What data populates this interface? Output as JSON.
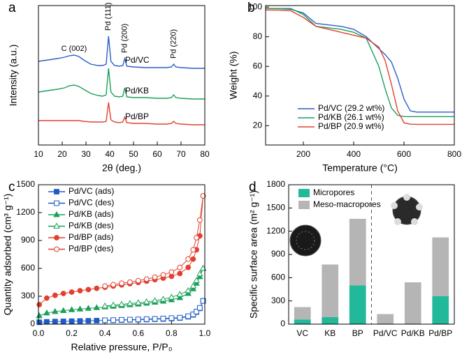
{
  "chart_data": [
    {
      "type": "line",
      "panel": "a",
      "xlabel": "2θ (deg.)",
      "ylabel": "Intensity (a.u.)",
      "x": [
        10,
        14,
        18,
        21,
        23,
        25,
        27,
        29,
        32,
        35,
        37,
        38.5,
        39.5,
        40.5,
        42,
        44,
        45.5,
        46.3,
        47.2,
        50,
        55,
        60,
        64,
        66,
        66.9,
        67.8,
        70,
        75,
        80
      ],
      "xlim": [
        10,
        80
      ],
      "xticks": [
        10,
        20,
        30,
        40,
        50,
        60,
        70,
        80
      ],
      "ylim": [
        0,
        100
      ],
      "legend": "inline",
      "annotations": [
        {
          "text": "C (002)",
          "x": 25,
          "vertical": false
        },
        {
          "text": "Pd (111)",
          "x": 39.5,
          "vertical": true
        },
        {
          "text": "Pd (200)",
          "x": 46.3,
          "vertical": true
        },
        {
          "text": "Pd (220)",
          "x": 66.9,
          "vertical": true
        }
      ],
      "series": [
        {
          "name": "Pd/VC",
          "color": "#2a5fc4",
          "values": [
            60,
            61,
            62,
            63,
            64,
            64.5,
            63.5,
            61,
            58,
            57,
            57,
            58,
            78,
            60,
            57,
            56.5,
            57,
            62,
            56.5,
            56,
            55.5,
            55.5,
            55.5,
            56,
            58,
            56,
            55.5,
            55,
            55
          ]
        },
        {
          "name": "Pd/KB",
          "color": "#1aa05a",
          "values": [
            38,
            39,
            40,
            41,
            42.5,
            43,
            42,
            40,
            37,
            35.5,
            35,
            36,
            55,
            38,
            35,
            34.5,
            35,
            41,
            34.5,
            34,
            34,
            33.5,
            33.5,
            34,
            36,
            34,
            33.5,
            33,
            33
          ]
        },
        {
          "name": "Pd/BP",
          "color": "#e2402f",
          "values": [
            17.5,
            17.5,
            17.5,
            17.5,
            17.5,
            17.5,
            17.5,
            17,
            16.5,
            16.5,
            16.5,
            17,
            30.5,
            18,
            16.5,
            16,
            16.5,
            20,
            16,
            15.5,
            15.5,
            15,
            15,
            15.5,
            17,
            15.5,
            15,
            14.5,
            14.5
          ]
        }
      ]
    },
    {
      "type": "line",
      "panel": "b",
      "xlabel": "Temperature (°C)",
      "ylabel": "Weight (%)",
      "x": [
        50,
        100,
        150,
        200,
        250,
        300,
        350,
        400,
        450,
        500,
        525,
        550,
        575,
        600,
        625,
        650,
        700,
        750,
        800
      ],
      "xlim": [
        50,
        800
      ],
      "xticks": [
        200,
        400,
        600,
        800
      ],
      "ylim": [
        7,
        101
      ],
      "yticks": [
        20,
        40,
        60,
        80,
        100
      ],
      "legend": "lower center",
      "series": [
        {
          "name": "Pd/VC (29.2 wt%)",
          "color": "#2a5fc4",
          "values": [
            99,
            99,
            98.5,
            96,
            89,
            88,
            87,
            85,
            80,
            72,
            68,
            63,
            52,
            38,
            30,
            29.2,
            29.2,
            29.2,
            29.2
          ]
        },
        {
          "name": "Pd/KB (26.1 wt%)",
          "color": "#1aa05a",
          "values": [
            99,
            99,
            99,
            95,
            87,
            86,
            85,
            83,
            79,
            60,
            45,
            32,
            27,
            26.2,
            26.1,
            26.1,
            26.1,
            26.1,
            26.1
          ]
        },
        {
          "name": "Pd/BP (20.9 wt%)",
          "color": "#e2402f",
          "values": [
            98,
            98,
            97.5,
            93,
            87,
            85,
            83,
            81,
            79,
            73,
            64,
            48,
            30,
            22,
            21,
            20.9,
            20.9,
            20.9,
            20.9
          ]
        }
      ]
    },
    {
      "type": "line",
      "panel": "c",
      "xlabel": "Relative pressure, P/P₀",
      "ylabel": "Quantity adsorbed (cm³ g⁻¹)",
      "x": [
        0.005,
        0.05,
        0.1,
        0.15,
        0.2,
        0.25,
        0.3,
        0.35,
        0.4,
        0.45,
        0.5,
        0.55,
        0.6,
        0.65,
        0.7,
        0.75,
        0.8,
        0.85,
        0.9,
        0.93,
        0.95,
        0.97,
        0.99
      ],
      "xlim": [
        0,
        1
      ],
      "xticks": [
        {
          "value": 0,
          "label": "0.0"
        },
        0.2,
        0.4,
        0.6,
        0.8,
        {
          "value": 1,
          "label": "1.0"
        }
      ],
      "ylim": [
        0,
        1500
      ],
      "yticks": [
        0,
        300,
        600,
        900,
        1200,
        1500
      ],
      "legend": "upper left",
      "series": [
        {
          "name": "Pd/VC (ads)",
          "color": "#1f5bc4",
          "marker": "square",
          "filled": true,
          "values": [
            20,
            25,
            28,
            30,
            32,
            34,
            36,
            38,
            40,
            42,
            44,
            46,
            48,
            50,
            53,
            56,
            60,
            66,
            80,
            100,
            130,
            170,
            250
          ]
        },
        {
          "name": "Pd/VC (des)",
          "color": "#1f5bc4",
          "marker": "square",
          "filled": false,
          "values": [
            null,
            null,
            null,
            null,
            null,
            null,
            null,
            null,
            42,
            44,
            47,
            49,
            51,
            54,
            57,
            61,
            65,
            70,
            85,
            105,
            135,
            175,
            250
          ]
        },
        {
          "name": "Pd/KB (ads)",
          "color": "#1aa05a",
          "marker": "triangle",
          "filled": true,
          "values": [
            90,
            120,
            135,
            145,
            155,
            162,
            170,
            177,
            185,
            192,
            200,
            208,
            216,
            225,
            235,
            247,
            262,
            285,
            330,
            380,
            440,
            510,
            600
          ]
        },
        {
          "name": "Pd/KB (des)",
          "color": "#1aa05a",
          "marker": "triangle",
          "filled": false,
          "values": [
            null,
            null,
            null,
            null,
            null,
            null,
            null,
            null,
            195,
            205,
            213,
            222,
            230,
            240,
            252,
            268,
            290,
            320,
            360,
            410,
            470,
            540,
            600
          ]
        },
        {
          "name": "Pd/BP (ads)",
          "color": "#e2402f",
          "marker": "circle",
          "filled": true,
          "values": [
            210,
            280,
            310,
            330,
            345,
            360,
            372,
            385,
            397,
            410,
            422,
            435,
            448,
            462,
            478,
            495,
            515,
            545,
            610,
            700,
            800,
            950,
            1380
          ]
        },
        {
          "name": "Pd/BP (des)",
          "color": "#e2402f",
          "marker": "circle",
          "filled": false,
          "values": [
            null,
            null,
            null,
            null,
            null,
            null,
            null,
            null,
            410,
            425,
            440,
            452,
            468,
            485,
            505,
            530,
            560,
            610,
            700,
            800,
            930,
            1120,
            1380
          ]
        }
      ]
    },
    {
      "type": "bar",
      "stacked": true,
      "panel": "d",
      "ylabel": "Specific surface area (m² g⁻¹)",
      "categories": [
        "VC",
        "KB",
        "BP",
        "Pd/VC",
        "Pd/KB",
        "Pd/BP"
      ],
      "ylim": [
        0,
        1800
      ],
      "yticks": [
        0,
        300,
        600,
        900,
        1200,
        1500,
        1800
      ],
      "legend": "upper left",
      "series": [
        {
          "name": "Micropores",
          "color": "#22b89a",
          "values": [
            60,
            90,
            500,
            0,
            0,
            360
          ]
        },
        {
          "name": "Meso-macropores",
          "color": "#b5b5b5",
          "values": [
            160,
            680,
            860,
            130,
            540,
            760
          ]
        }
      ]
    }
  ]
}
